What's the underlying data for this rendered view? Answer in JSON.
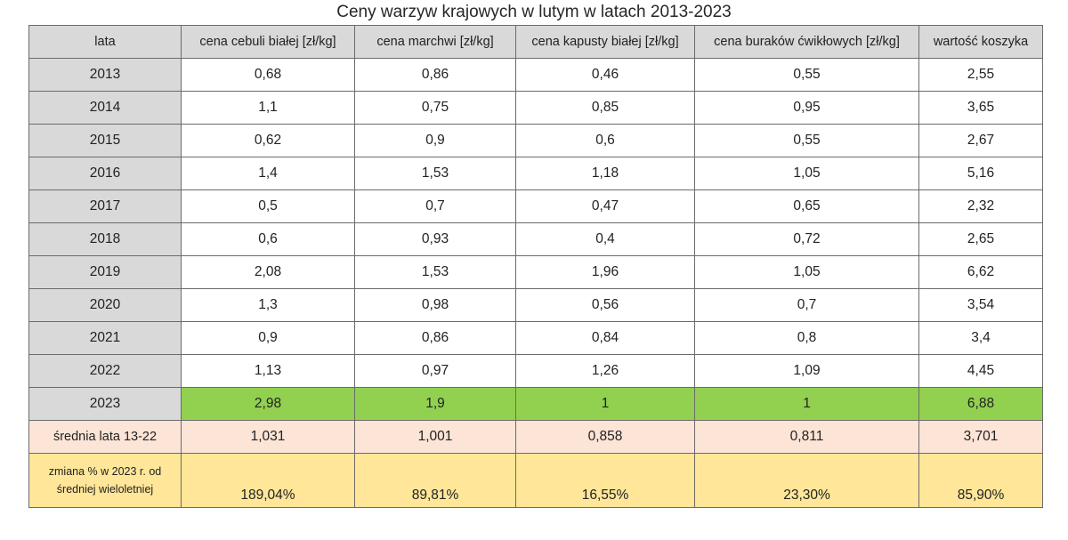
{
  "title": "Ceny warzyw krajowych w lutym w latach 2013-2023",
  "headers": [
    "lata",
    "cena cebuli białej [zł/kg]",
    "cena marchwi [zł/kg]",
    "cena kapusty białej [zł/kg]",
    "cena buraków ćwikłowych [zł/kg]",
    "wartość koszyka"
  ],
  "rows": [
    {
      "year": "2013",
      "values": [
        "0,68",
        "0,86",
        "0,46",
        "0,55",
        "2,55"
      ]
    },
    {
      "year": "2014",
      "values": [
        "1,1",
        "0,75",
        "0,85",
        "0,95",
        "3,65"
      ]
    },
    {
      "year": "2015",
      "values": [
        "0,62",
        "0,9",
        "0,6",
        "0,55",
        "2,67"
      ]
    },
    {
      "year": "2016",
      "values": [
        "1,4",
        "1,53",
        "1,18",
        "1,05",
        "5,16"
      ]
    },
    {
      "year": "2017",
      "values": [
        "0,5",
        "0,7",
        "0,47",
        "0,65",
        "2,32"
      ]
    },
    {
      "year": "2018",
      "values": [
        "0,6",
        "0,93",
        "0,4",
        "0,72",
        "2,65"
      ]
    },
    {
      "year": "2019",
      "values": [
        "2,08",
        "1,53",
        "1,96",
        "1,05",
        "6,62"
      ]
    },
    {
      "year": "2020",
      "values": [
        "1,3",
        "0,98",
        "0,56",
        "0,7",
        "3,54"
      ]
    },
    {
      "year": "2021",
      "values": [
        "0,9",
        "0,86",
        "0,84",
        "0,8",
        "3,4"
      ]
    },
    {
      "year": "2022",
      "values": [
        "1,13",
        "0,97",
        "1,26",
        "1,09",
        "4,45"
      ]
    },
    {
      "year": "2023",
      "values": [
        "2,98",
        "1,9",
        "1",
        "1",
        "6,88"
      ]
    }
  ],
  "average": {
    "label": "średnia lata 13-22",
    "values": [
      "1,031",
      "1,001",
      "0,858",
      "0,811",
      "3,701"
    ]
  },
  "change": {
    "label_line1": "zmiana % w 2023 r. od",
    "label_line2": "średniej wieloletniej",
    "values": [
      "189,04%",
      "89,81%",
      "16,55%",
      "23,30%",
      "85,90%"
    ]
  },
  "colors": {
    "header_bg": "#d9d9d9",
    "highlight_2023": "#92d050",
    "average_bg": "#fce4d6",
    "change_bg": "#ffe699",
    "border": "#6b6b6b"
  }
}
